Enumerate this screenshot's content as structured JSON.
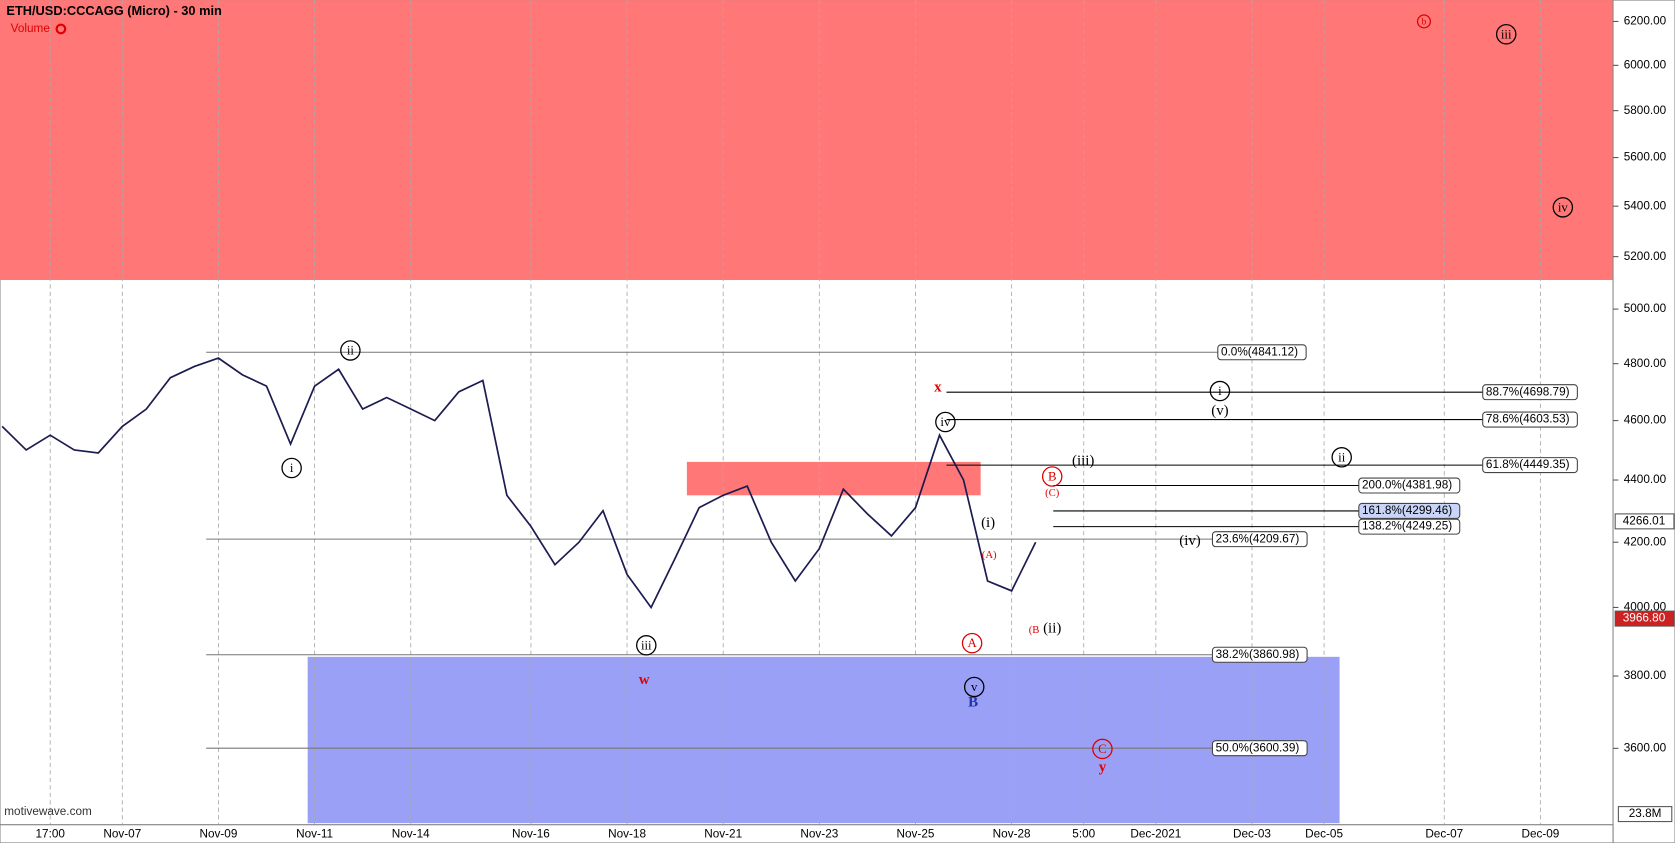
{
  "chart_data": {
    "type": "line",
    "title": "ETH/USD:CCCAGG (Micro) - 30 min",
    "indicator": "Volume",
    "watermark": "motivewave.com",
    "volume_axis_label": "23.8M",
    "log_scale": true,
    "grid": true,
    "categories": [
      null,
      null,
      "17:00",
      null,
      null,
      "Nov-07",
      null,
      null,
      null,
      "Nov-09",
      null,
      null,
      null,
      "Nov-11",
      null,
      null,
      null,
      "Nov-14",
      null,
      null,
      null,
      null,
      "Nov-16",
      null,
      null,
      null,
      "Nov-18",
      null,
      null,
      null,
      "Nov-21",
      null,
      null,
      null,
      "Nov-23",
      null,
      null,
      null,
      "Nov-25",
      null,
      null,
      null,
      "Nov-28",
      null,
      null,
      "5:00",
      null,
      null,
      "Dec-2021",
      null,
      null,
      null,
      "Dec-03",
      null,
      null,
      "Dec-05",
      null,
      null,
      null,
      null,
      "Dec-07",
      null,
      null,
      null,
      "Dec-09",
      null,
      null
    ],
    "series": [
      {
        "name": "ETH/USD",
        "color": "#1c1c50",
        "values": [
          4580,
          4500,
          4550,
          4500,
          4490,
          4580,
          4640,
          4750,
          4790,
          4820,
          4760,
          4720,
          4520,
          4720,
          4780,
          4640,
          4680,
          4640,
          4600,
          4700,
          4740,
          4350,
          4250,
          4130,
          4200,
          4300,
          4100,
          4000,
          4150,
          4310,
          4350,
          4380,
          4200,
          4080,
          4180,
          4370,
          4290,
          4220,
          4310,
          4550,
          4400,
          4080,
          4050,
          4200,
          null,
          null,
          null,
          null,
          null,
          null,
          null,
          null,
          null,
          null,
          null,
          null,
          null,
          null,
          null,
          null,
          null,
          null,
          null,
          null,
          null,
          null,
          null
        ]
      }
    ],
    "ylim": [
      3400,
      6300
    ],
    "yticks": [
      {
        "value": 3600,
        "label": "3600.00"
      },
      {
        "value": 3800,
        "label": "3800.00"
      },
      {
        "value": 4000,
        "label": "4000.00"
      },
      {
        "value": 4200,
        "label": "4200.00"
      },
      {
        "value": 4400,
        "label": "4400.00"
      },
      {
        "value": 4600,
        "label": "4600.00"
      },
      {
        "value": 4800,
        "label": "4800.00"
      },
      {
        "value": 5000,
        "label": "5000.00"
      },
      {
        "value": 5200,
        "label": "5200.00"
      },
      {
        "value": 5400,
        "label": "5400.00"
      },
      {
        "value": 5600,
        "label": "5600.00"
      },
      {
        "value": 5800,
        "label": "5800.00"
      },
      {
        "value": 6000,
        "label": "6000.00"
      },
      {
        "value": 6200,
        "label": "6200.00"
      }
    ],
    "price_markers": [
      {
        "value": 4266.01,
        "label": "4266.01",
        "color": "#ffffff"
      },
      {
        "value": 3966.8,
        "label": "3966.80",
        "color": "#cc2222"
      }
    ],
    "zones": [
      {
        "from": 5110,
        "to": 6300,
        "color": "#ff7777"
      },
      {
        "from": 4350,
        "to": 4460,
        "color": "#ff7777"
      },
      {
        "from": 3404,
        "to": 3855,
        "color": "#9aa0f5"
      }
    ],
    "levels": [
      {
        "label": "0.0%(4841.12)",
        "value": 4841.12
      },
      {
        "label": "88.7%(4698.79)",
        "value": 4698.79
      },
      {
        "label": "78.6%(4603.53)",
        "value": 4603.53
      },
      {
        "label": "61.8%(4449.35)",
        "value": 4449.35
      },
      {
        "label": "200.0%(4381.98)",
        "value": 4381.98
      },
      {
        "label": "161.8%(4299.46)",
        "value": 4299.46,
        "highlight": true
      },
      {
        "label": "138.2%(4249.25)",
        "value": 4249.25
      },
      {
        "label": "23.6%(4209.67)",
        "value": 4209.67
      },
      {
        "label": "38.2%(3860.98)",
        "value": 3860.98
      },
      {
        "label": "50.0%(3600.39)",
        "value": 3600.39
      }
    ],
    "annotations": [
      {
        "text": "ii",
        "circled": true,
        "color": "#000000"
      },
      {
        "text": "i",
        "circled": true,
        "color": "#000000"
      },
      {
        "text": "iii",
        "circled": true,
        "color": "#000000"
      },
      {
        "text": "w",
        "color": "#e00000"
      },
      {
        "text": "x",
        "color": "#e00000"
      },
      {
        "text": "iv",
        "circled": true,
        "color": "#000000"
      },
      {
        "text": "v",
        "circled": true,
        "color": "#000000"
      },
      {
        "text": "B",
        "color": "#2233aa"
      },
      {
        "text": "A",
        "circled": true,
        "color": "#e00000"
      },
      {
        "text": "(A)",
        "color": "#e00000"
      },
      {
        "text": "(i)",
        "color": "#000000"
      },
      {
        "text": "B",
        "circled": true,
        "color": "#e00000"
      },
      {
        "text": "(C)",
        "color": "#e00000"
      },
      {
        "text": "(iii)",
        "color": "#000000"
      },
      {
        "text": "(B",
        "color": "#e00000"
      },
      {
        "text": "(ii)",
        "color": "#000000"
      },
      {
        "text": "(iv)",
        "color": "#000000"
      },
      {
        "text": "i",
        "circled": true,
        "color": "#000000"
      },
      {
        "text": "(v)",
        "color": "#000000"
      },
      {
        "text": "ii",
        "circled": true,
        "color": "#000000"
      },
      {
        "text": "C",
        "circled": true,
        "color": "#e00000"
      },
      {
        "text": "y",
        "color": "#e00000"
      },
      {
        "text": "b",
        "circled": true,
        "color": "#e00000"
      },
      {
        "text": "iii",
        "circled": true,
        "color": "#000000"
      },
      {
        "text": "iv",
        "circled": true,
        "color": "#000000"
      }
    ]
  }
}
